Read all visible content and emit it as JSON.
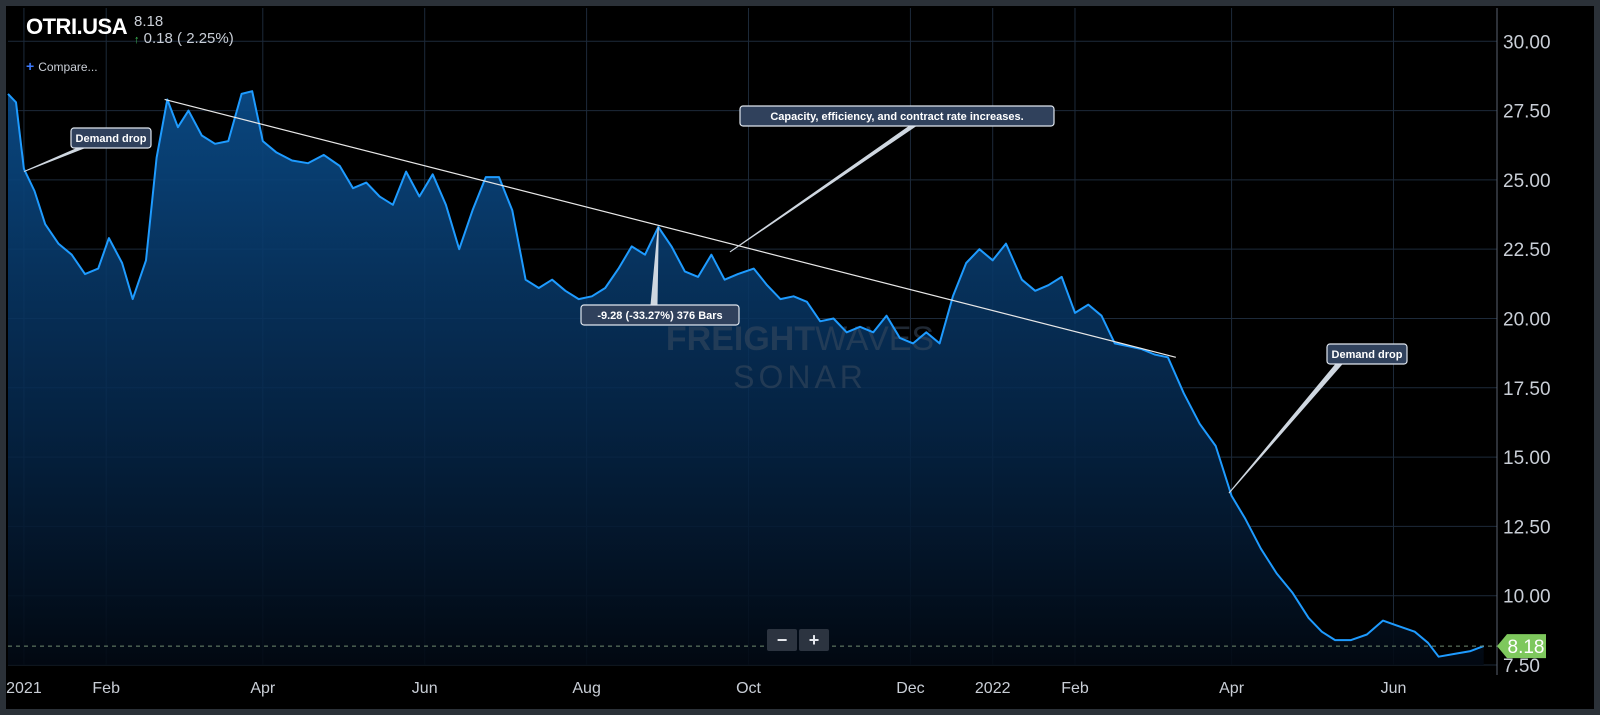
{
  "header": {
    "ticker": "OTRI.USA",
    "price": "8.18",
    "change_arrow": "↑",
    "change": "0.18 ( 2.25%)",
    "compare_plus": "+",
    "compare_label": "Compare..."
  },
  "watermark": {
    "line1_bold": "FREIGHT",
    "line1_light": "WAVES",
    "line2": "SONAR"
  },
  "zoom": {
    "minus": "−",
    "plus": "+"
  },
  "colors": {
    "line": "#1e9bff",
    "grid": "#1d2a3a",
    "axis_text": "#c9ced6",
    "last_price_bg": "#7ec85d",
    "background": "#000000"
  },
  "chart_data": {
    "type": "area",
    "title": "OTRI.USA",
    "xlabel": "",
    "ylabel": "",
    "ylim": [
      7.5,
      31.2
    ],
    "yticks": [
      "7.50",
      "10.00",
      "12.50",
      "15.00",
      "17.50",
      "20.00",
      "22.50",
      "25.00",
      "27.50",
      "30.00"
    ],
    "yticks_values": [
      7.5,
      10,
      12.5,
      15,
      17.5,
      20,
      22.5,
      25,
      27.5,
      30
    ],
    "xlim": [
      "2020-12-26",
      "2022-07-10"
    ],
    "xticks": [
      {
        "label": "2021",
        "date": "2021-01-01"
      },
      {
        "label": "Feb",
        "date": "2021-02-01"
      },
      {
        "label": "Apr",
        "date": "2021-04-01"
      },
      {
        "label": "Jun",
        "date": "2021-06-01"
      },
      {
        "label": "Aug",
        "date": "2021-08-01"
      },
      {
        "label": "Oct",
        "date": "2021-10-01"
      },
      {
        "label": "Dec",
        "date": "2021-12-01"
      },
      {
        "label": "2022",
        "date": "2022-01-01"
      },
      {
        "label": "Feb",
        "date": "2022-02-01"
      },
      {
        "label": "Apr",
        "date": "2022-04-01"
      },
      {
        "label": "Jun",
        "date": "2022-06-01"
      }
    ],
    "last_value": "8.18",
    "last_value_num": 8.18,
    "series": [
      {
        "points": [
          [
            "2020-12-26",
            28.1
          ],
          [
            "2020-12-29",
            27.8
          ],
          [
            "2021-01-01",
            25.4
          ],
          [
            "2021-01-05",
            24.6
          ],
          [
            "2021-01-09",
            23.4
          ],
          [
            "2021-01-14",
            22.7
          ],
          [
            "2021-01-19",
            22.3
          ],
          [
            "2021-01-24",
            21.6
          ],
          [
            "2021-01-29",
            21.8
          ],
          [
            "2021-02-02",
            22.9
          ],
          [
            "2021-02-07",
            22.0
          ],
          [
            "2021-02-11",
            20.7
          ],
          [
            "2021-02-16",
            22.1
          ],
          [
            "2021-02-20",
            25.8
          ],
          [
            "2021-02-24",
            27.9
          ],
          [
            "2021-02-28",
            26.9
          ],
          [
            "2021-03-04",
            27.5
          ],
          [
            "2021-03-09",
            26.6
          ],
          [
            "2021-03-14",
            26.3
          ],
          [
            "2021-03-19",
            26.4
          ],
          [
            "2021-03-24",
            28.1
          ],
          [
            "2021-03-28",
            28.2
          ],
          [
            "2021-04-01",
            26.4
          ],
          [
            "2021-04-06",
            26.0
          ],
          [
            "2021-04-12",
            25.7
          ],
          [
            "2021-04-18",
            25.6
          ],
          [
            "2021-04-24",
            25.9
          ],
          [
            "2021-04-30",
            25.5
          ],
          [
            "2021-05-05",
            24.7
          ],
          [
            "2021-05-10",
            24.9
          ],
          [
            "2021-05-15",
            24.4
          ],
          [
            "2021-05-20",
            24.1
          ],
          [
            "2021-05-25",
            25.3
          ],
          [
            "2021-05-30",
            24.4
          ],
          [
            "2021-06-04",
            25.2
          ],
          [
            "2021-06-09",
            24.1
          ],
          [
            "2021-06-14",
            22.5
          ],
          [
            "2021-06-19",
            23.9
          ],
          [
            "2021-06-24",
            25.1
          ],
          [
            "2021-06-29",
            25.1
          ],
          [
            "2021-07-04",
            23.9
          ],
          [
            "2021-07-09",
            21.4
          ],
          [
            "2021-07-14",
            21.1
          ],
          [
            "2021-07-19",
            21.4
          ],
          [
            "2021-07-24",
            21.0
          ],
          [
            "2021-07-29",
            20.7
          ],
          [
            "2021-08-03",
            20.8
          ],
          [
            "2021-08-08",
            21.1
          ],
          [
            "2021-08-13",
            21.8
          ],
          [
            "2021-08-18",
            22.6
          ],
          [
            "2021-08-23",
            22.3
          ],
          [
            "2021-08-28",
            23.3
          ],
          [
            "2021-09-02",
            22.6
          ],
          [
            "2021-09-07",
            21.7
          ],
          [
            "2021-09-12",
            21.5
          ],
          [
            "2021-09-17",
            22.3
          ],
          [
            "2021-09-22",
            21.4
          ],
          [
            "2021-09-27",
            21.6
          ],
          [
            "2021-10-03",
            21.8
          ],
          [
            "2021-10-08",
            21.2
          ],
          [
            "2021-10-13",
            20.7
          ],
          [
            "2021-10-18",
            20.8
          ],
          [
            "2021-10-23",
            20.6
          ],
          [
            "2021-10-28",
            19.9
          ],
          [
            "2021-11-02",
            20.0
          ],
          [
            "2021-11-07",
            19.5
          ],
          [
            "2021-11-12",
            19.7
          ],
          [
            "2021-11-17",
            19.5
          ],
          [
            "2021-11-22",
            20.1
          ],
          [
            "2021-11-27",
            19.3
          ],
          [
            "2021-12-02",
            19.1
          ],
          [
            "2021-12-07",
            19.5
          ],
          [
            "2021-12-12",
            19.1
          ],
          [
            "2021-12-17",
            20.8
          ],
          [
            "2021-12-22",
            22.0
          ],
          [
            "2021-12-27",
            22.5
          ],
          [
            "2022-01-01",
            22.1
          ],
          [
            "2022-01-06",
            22.7
          ],
          [
            "2022-01-12",
            21.4
          ],
          [
            "2022-01-17",
            21.0
          ],
          [
            "2022-01-22",
            21.2
          ],
          [
            "2022-01-27",
            21.5
          ],
          [
            "2022-02-01",
            20.2
          ],
          [
            "2022-02-06",
            20.5
          ],
          [
            "2022-02-11",
            20.1
          ],
          [
            "2022-02-16",
            19.1
          ],
          [
            "2022-02-21",
            19.0
          ],
          [
            "2022-02-26",
            18.9
          ],
          [
            "2022-03-03",
            18.7
          ],
          [
            "2022-03-08",
            18.6
          ],
          [
            "2022-03-14",
            17.3
          ],
          [
            "2022-03-20",
            16.2
          ],
          [
            "2022-03-26",
            15.4
          ],
          [
            "2022-04-01",
            13.6
          ],
          [
            "2022-04-06",
            12.8
          ],
          [
            "2022-04-12",
            11.7
          ],
          [
            "2022-04-18",
            10.8
          ],
          [
            "2022-04-24",
            10.1
          ],
          [
            "2022-04-30",
            9.2
          ],
          [
            "2022-05-05",
            8.7
          ],
          [
            "2022-05-10",
            8.4
          ],
          [
            "2022-05-16",
            8.4
          ],
          [
            "2022-05-22",
            8.6
          ],
          [
            "2022-05-28",
            9.1
          ],
          [
            "2022-06-03",
            8.9
          ],
          [
            "2022-06-09",
            8.7
          ],
          [
            "2022-06-14",
            8.3
          ],
          [
            "2022-06-18",
            7.8
          ],
          [
            "2022-06-24",
            7.9
          ],
          [
            "2022-06-30",
            8.0
          ],
          [
            "2022-07-05",
            8.18
          ]
        ]
      }
    ],
    "annotations": [
      {
        "text": "Demand drop",
        "date": "2021-01-01",
        "value": 25.3
      },
      {
        "text": "Capacity, efficiency, and contract rate increases.",
        "date": "2021-09-24",
        "value": 22.4
      },
      {
        "text": "Demand drop",
        "date": "2022-03-31",
        "value": 13.7
      }
    ],
    "trendline": {
      "start": [
        "2021-02-23",
        27.9
      ],
      "end": [
        "2022-03-11",
        18.6
      ]
    },
    "measure": {
      "label": "-9.28 (-33.27%) 376 Bars",
      "date": "2021-08-28",
      "value": 23.3
    }
  }
}
